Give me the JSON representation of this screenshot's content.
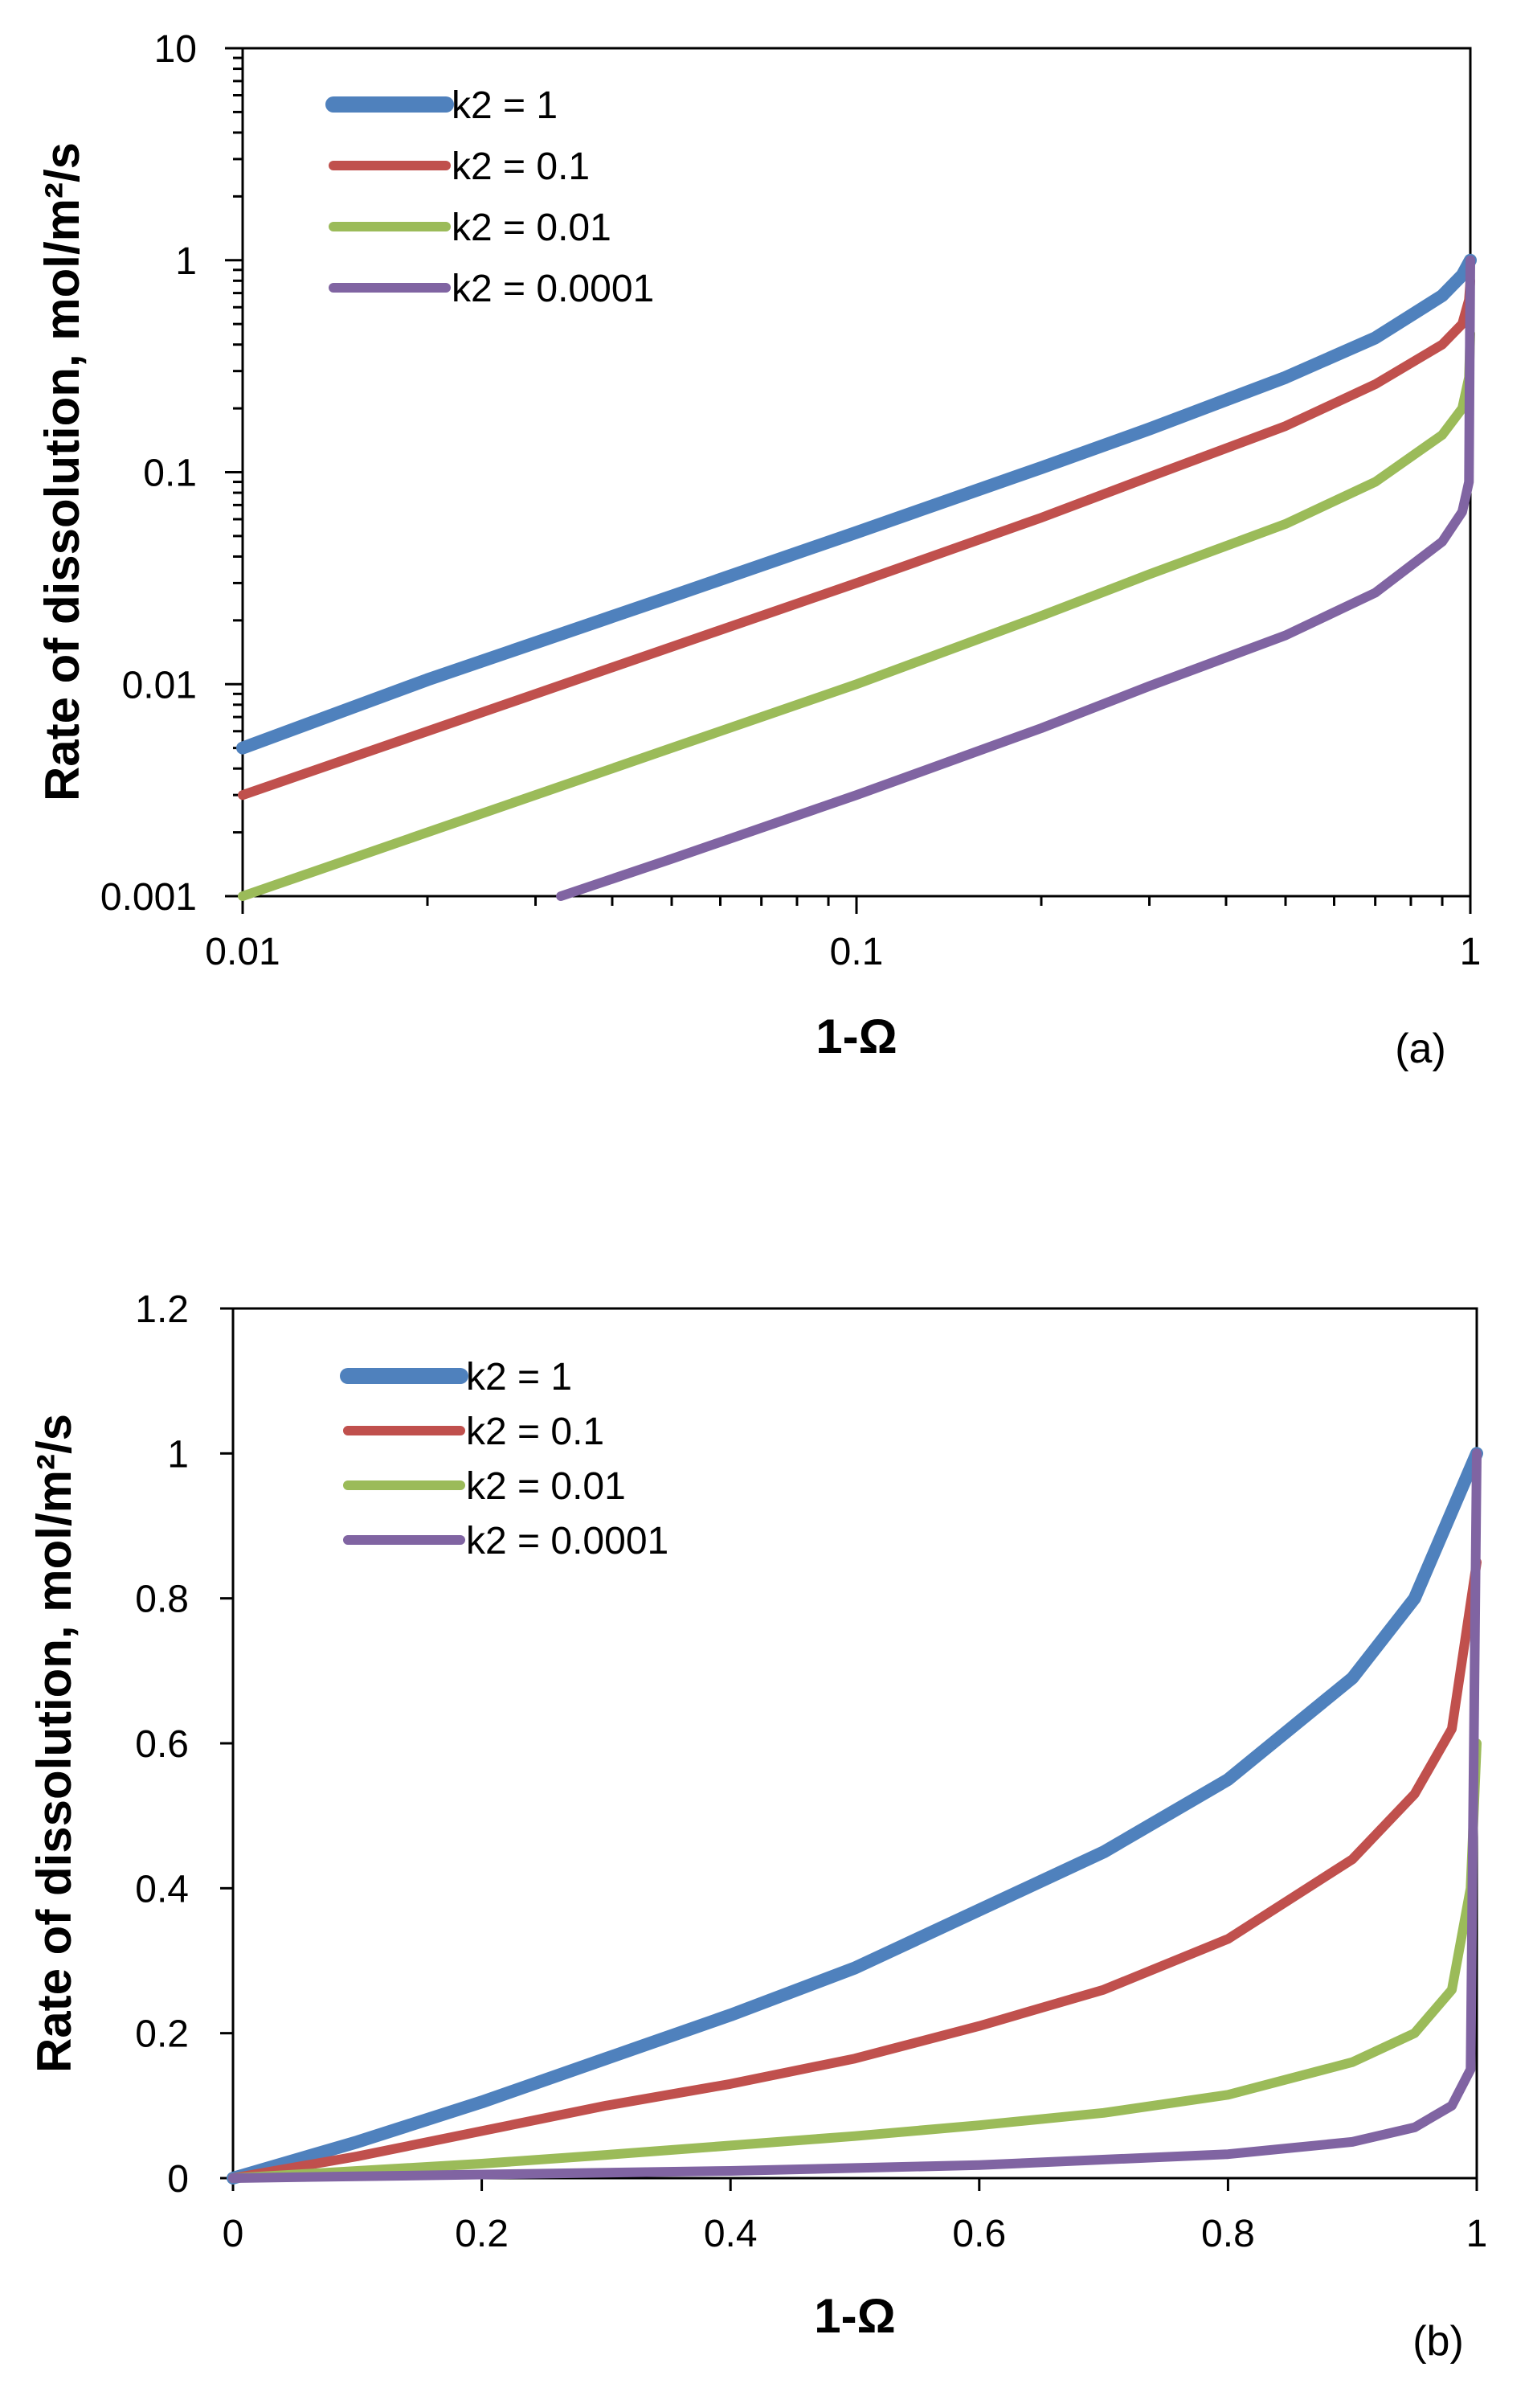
{
  "chart_data": [
    {
      "id": "a",
      "type": "line",
      "x_scale": "log",
      "y_scale": "log",
      "xlabel": "1-Ω",
      "ylabel": "Rate of dissolution, mol/m²/s",
      "xlim": [
        0.01,
        1
      ],
      "ylim": [
        0.001,
        10
      ],
      "x_ticks": [
        "0.01",
        "0.1",
        "1"
      ],
      "y_ticks": [
        "0.001",
        "0.01",
        "0.1",
        "1",
        "10"
      ],
      "panel_label": "(a)",
      "legend_position": "top-left",
      "series": [
        {
          "name": "k2 = 1",
          "color": "#4F81BD",
          "x": [
            0.01,
            0.02,
            0.05,
            0.1,
            0.2,
            0.3,
            0.5,
            0.7,
            0.9,
            0.97,
            1.0
          ],
          "y": [
            0.005,
            0.0105,
            0.026,
            0.052,
            0.105,
            0.16,
            0.28,
            0.43,
            0.68,
            0.85,
            1.0
          ]
        },
        {
          "name": "k2 = 0.1",
          "color": "#C0504D",
          "x": [
            0.01,
            0.02,
            0.05,
            0.1,
            0.2,
            0.3,
            0.5,
            0.7,
            0.9,
            0.97,
            0.995,
            1.0
          ],
          "y": [
            0.003,
            0.006,
            0.015,
            0.03,
            0.061,
            0.095,
            0.165,
            0.26,
            0.4,
            0.5,
            0.65,
            0.8
          ]
        },
        {
          "name": "k2 = 0.01",
          "color": "#9BBB59",
          "x": [
            0.01,
            0.02,
            0.05,
            0.1,
            0.2,
            0.3,
            0.5,
            0.7,
            0.9,
            0.97,
            0.995,
            1.0
          ],
          "y": [
            0.001,
            0.002,
            0.005,
            0.01,
            0.021,
            0.033,
            0.057,
            0.09,
            0.15,
            0.2,
            0.28,
            0.45
          ]
        },
        {
          "name": "k2 = 0.0001",
          "color": "#8064A2",
          "x": [
            0.033,
            0.05,
            0.1,
            0.2,
            0.3,
            0.5,
            0.7,
            0.9,
            0.97,
            0.995,
            1.0
          ],
          "y": [
            0.001,
            0.0015,
            0.003,
            0.0062,
            0.0098,
            0.017,
            0.027,
            0.047,
            0.065,
            0.09,
            1.0
          ]
        }
      ]
    },
    {
      "id": "b",
      "type": "line",
      "x_scale": "linear",
      "y_scale": "linear",
      "xlabel": "1-Ω",
      "ylabel": "Rate of dissolution, mol/m²/s",
      "xlim": [
        0,
        1
      ],
      "ylim": [
        0,
        1.2
      ],
      "x_ticks": [
        "0",
        "0.2",
        "0.4",
        "0.6",
        "0.8",
        "1"
      ],
      "y_ticks": [
        "0",
        "0.2",
        "0.4",
        "0.6",
        "0.8",
        "1",
        "1.2"
      ],
      "panel_label": "(b)",
      "legend_position": "top-left",
      "series": [
        {
          "name": "k2 = 1",
          "color": "#4F81BD",
          "x": [
            0,
            0.1,
            0.2,
            0.3,
            0.4,
            0.5,
            0.6,
            0.7,
            0.8,
            0.9,
            0.95,
            1.0
          ],
          "y": [
            0,
            0.05,
            0.105,
            0.165,
            0.225,
            0.29,
            0.37,
            0.45,
            0.55,
            0.69,
            0.8,
            1.0
          ]
        },
        {
          "name": "k2 = 0.1",
          "color": "#C0504D",
          "x": [
            0,
            0.1,
            0.2,
            0.3,
            0.4,
            0.5,
            0.6,
            0.7,
            0.8,
            0.9,
            0.95,
            0.98,
            1.0
          ],
          "y": [
            0,
            0.03,
            0.065,
            0.1,
            0.13,
            0.165,
            0.21,
            0.26,
            0.33,
            0.44,
            0.53,
            0.62,
            0.85
          ]
        },
        {
          "name": "k2 = 0.01",
          "color": "#9BBB59",
          "x": [
            0,
            0.1,
            0.2,
            0.3,
            0.4,
            0.5,
            0.6,
            0.7,
            0.8,
            0.9,
            0.95,
            0.98,
            0.995,
            1.0
          ],
          "y": [
            0,
            0.01,
            0.02,
            0.032,
            0.045,
            0.058,
            0.073,
            0.09,
            0.115,
            0.16,
            0.2,
            0.26,
            0.4,
            0.6
          ]
        },
        {
          "name": "k2 = 0.0001",
          "color": "#8064A2",
          "x": [
            0,
            0.2,
            0.4,
            0.6,
            0.8,
            0.9,
            0.95,
            0.98,
            0.995,
            1.0
          ],
          "y": [
            0,
            0.005,
            0.01,
            0.018,
            0.033,
            0.05,
            0.07,
            0.1,
            0.15,
            1.0
          ]
        }
      ]
    }
  ]
}
